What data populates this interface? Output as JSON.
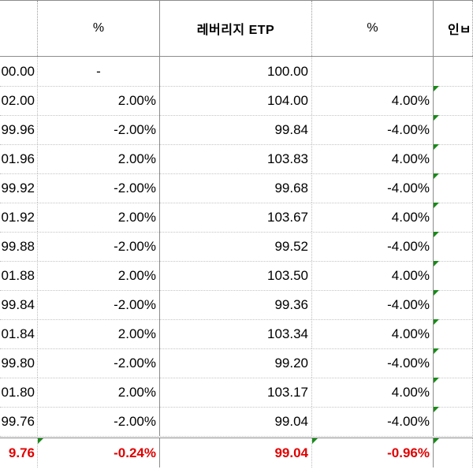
{
  "header": {
    "col1": "",
    "col2": "%",
    "col3": "레버리지 ETP",
    "col4": "%",
    "col5": "인ㅂ"
  },
  "rows": [
    {
      "c1": "00.00",
      "c2": "-",
      "c3": "100.00",
      "c4": "",
      "c5": ""
    },
    {
      "c1": "02.00",
      "c2": "2.00%",
      "c3": "104.00",
      "c4": "4.00%",
      "c5": ""
    },
    {
      "c1": "99.96",
      "c2": "-2.00%",
      "c3": "99.84",
      "c4": "-4.00%",
      "c5": ""
    },
    {
      "c1": "01.96",
      "c2": "2.00%",
      "c3": "103.83",
      "c4": "4.00%",
      "c5": ""
    },
    {
      "c1": "99.92",
      "c2": "-2.00%",
      "c3": "99.68",
      "c4": "-4.00%",
      "c5": ""
    },
    {
      "c1": "01.92",
      "c2": "2.00%",
      "c3": "103.67",
      "c4": "4.00%",
      "c5": ""
    },
    {
      "c1": "99.88",
      "c2": "-2.00%",
      "c3": "99.52",
      "c4": "-4.00%",
      "c5": ""
    },
    {
      "c1": "01.88",
      "c2": "2.00%",
      "c3": "103.50",
      "c4": "4.00%",
      "c5": ""
    },
    {
      "c1": "99.84",
      "c2": "-2.00%",
      "c3": "99.36",
      "c4": "-4.00%",
      "c5": ""
    },
    {
      "c1": "01.84",
      "c2": "2.00%",
      "c3": "103.34",
      "c4": "4.00%",
      "c5": ""
    },
    {
      "c1": "99.80",
      "c2": "-2.00%",
      "c3": "99.20",
      "c4": "-4.00%",
      "c5": ""
    },
    {
      "c1": "01.80",
      "c2": "2.00%",
      "c3": "103.17",
      "c4": "4.00%",
      "c5": ""
    },
    {
      "c1": "99.76",
      "c2": "-2.00%",
      "c3": "99.04",
      "c4": "-4.00%",
      "c5": ""
    }
  ],
  "total": {
    "c1": "9.76",
    "c2": "-0.24%",
    "c3": "99.04",
    "c4": "-0.96%",
    "c5": ""
  },
  "colors": {
    "total_text": "#e00000",
    "indicator": "#1a8a1a"
  }
}
